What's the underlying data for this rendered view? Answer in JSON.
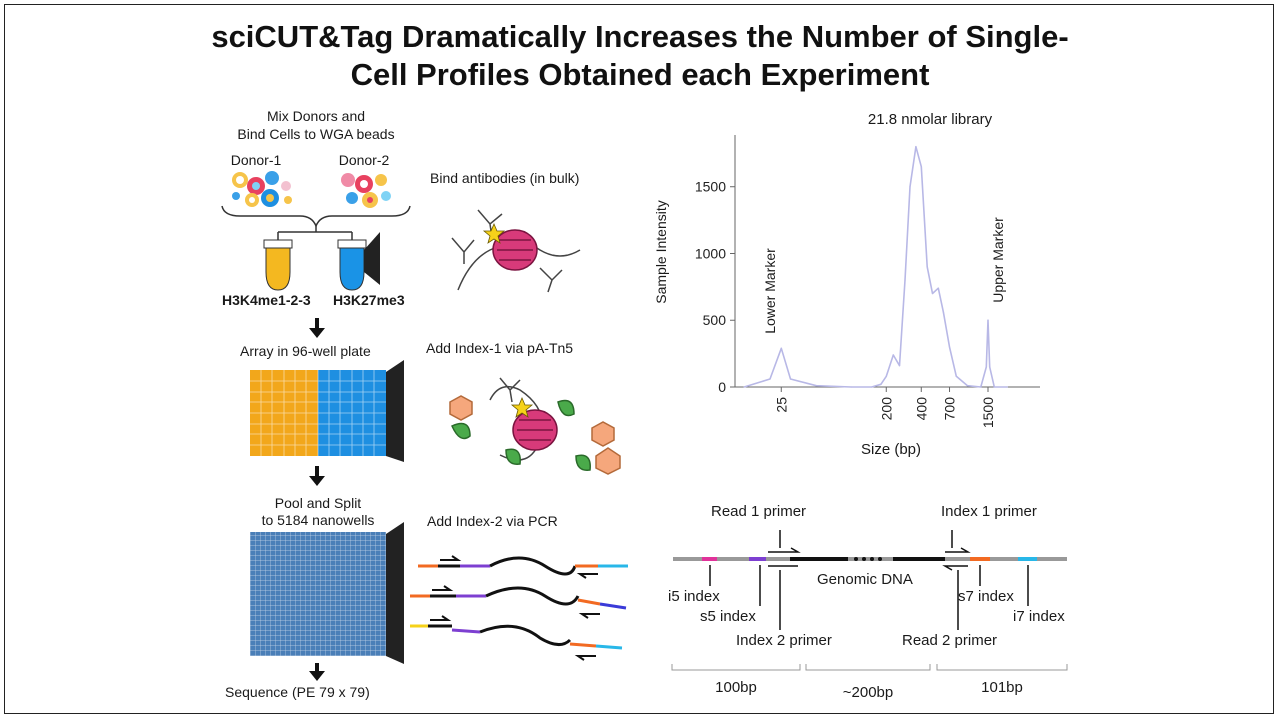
{
  "title_line1": "sciCUT&Tag Dramatically Increases the Number of Single-",
  "title_line2": "Cell Profiles Obtained each Experiment",
  "workflow": {
    "step1_line1": "Mix Donors and",
    "step1_line2": "Bind Cells to WGA beads",
    "donor1": "Donor-1",
    "donor2": "Donor-2",
    "tube1_label": "H3K4me1-2-3",
    "tube2_label": "H3K27me3",
    "bind_antibodies": "Bind antibodies (in bulk)",
    "array_label": "Array in 96-well plate",
    "index1_label": "Add Index-1 via pA-Tn5",
    "pool_line1": "Pool and Split",
    "pool_line2": "to 5184 nanowells",
    "index2_label": "Add Index-2 via PCR",
    "sequence_label": "Sequence (PE 79 x 79)"
  },
  "chart_data": {
    "type": "line",
    "title": "21.8 nmolar library",
    "xlabel": "Size (bp)",
    "ylabel": "Sample Intensity",
    "x_ticks": [
      "25",
      "200",
      "400",
      "700",
      "1500"
    ],
    "y_ticks": [
      "0",
      "500",
      "1000",
      "1500"
    ],
    "ylim": [
      0,
      1850
    ],
    "annotations": [
      "Lower Marker",
      "Upper Marker"
    ],
    "series": [
      {
        "x": [
          12,
          20,
          25,
          30,
          50,
          100,
          150,
          180,
          200,
          230,
          260,
          290,
          320,
          360,
          400,
          450,
          500,
          560,
          620,
          700,
          800,
          1000,
          1300,
          1450,
          1500,
          1550,
          1700,
          2200
        ],
        "y": [
          0,
          60,
          290,
          60,
          10,
          0,
          0,
          20,
          80,
          240,
          160,
          800,
          1500,
          1800,
          1650,
          900,
          700,
          740,
          560,
          300,
          80,
          10,
          0,
          150,
          500,
          150,
          0,
          0
        ]
      }
    ],
    "line_color": "#b8b8e6"
  },
  "construct": {
    "read1_primer": "Read 1 primer",
    "index1_primer": "Index 1 primer",
    "genomic_dna": "Genomic DNA",
    "i5_index": "i5 index",
    "s5_index": "s5 index",
    "index2_primer": "Index 2 primer",
    "read2_primer": "Read 2 primer",
    "s7_index": "s7 index",
    "i7_index": "i7 index",
    "len_left": "100bp",
    "len_mid": "~200bp",
    "len_right": "101bp"
  },
  "colors": {
    "tube1": "#f4b820",
    "tube2": "#1a93e6",
    "plate_left": "#f2a71b",
    "plate_right": "#1e8fe1",
    "nanowell": "#4a7fb8",
    "nucleosome": "#d83a7a",
    "i5": "#e0329a",
    "s5": "#7d3fd1",
    "s7": "#f26a22",
    "i7": "#28b7e8"
  }
}
